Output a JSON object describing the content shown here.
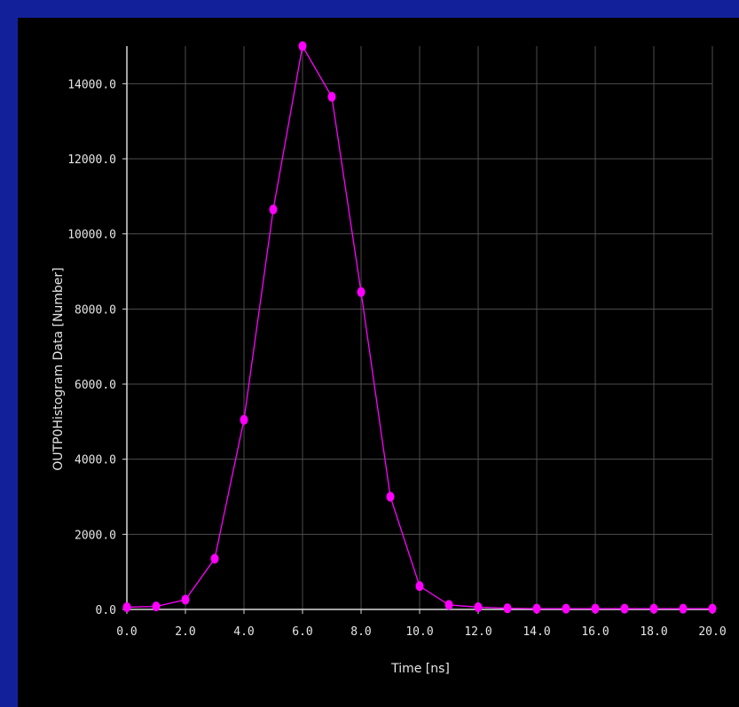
{
  "colors": {
    "slide_background": "#12219a",
    "plot_background": "#000000",
    "grid": "#4d4d4d",
    "axis": "#d9d9d9",
    "series": "#ff00ff",
    "text": "#e6e6e6"
  },
  "chart_data": {
    "type": "line",
    "title": "",
    "xlabel": "Time [ns]",
    "ylabel": "OUTP0Histogram Data [Number]",
    "xlim": [
      0,
      20
    ],
    "ylim": [
      0,
      15000
    ],
    "grid": true,
    "x_ticks": [
      0,
      2,
      4,
      6,
      8,
      10,
      12,
      14,
      16,
      18,
      20
    ],
    "x_tick_labels": [
      "0.0",
      "2.0",
      "4.0",
      "6.0",
      "8.0",
      "10.0",
      "12.0",
      "14.0",
      "16.0",
      "18.0",
      "20.0"
    ],
    "y_ticks": [
      0,
      2000,
      4000,
      6000,
      8000,
      10000,
      12000,
      14000
    ],
    "y_tick_labels": [
      "0.0",
      "2000.0",
      "4000.0",
      "6000.0",
      "8000.0",
      "10000.0",
      "12000.0",
      "14000.0"
    ],
    "series": [
      {
        "x": [
          0,
          1,
          2,
          3,
          4,
          5,
          6,
          7,
          8,
          9,
          10,
          11,
          12,
          13,
          14,
          15,
          16,
          17,
          18,
          19,
          20
        ],
        "y": [
          60,
          80,
          260,
          1350,
          5050,
          10650,
          15000,
          13650,
          8450,
          3000,
          620,
          120,
          60,
          30,
          20,
          20,
          20,
          20,
          20,
          20,
          20
        ],
        "marker": "circle",
        "color": "#ff00ff"
      }
    ]
  }
}
